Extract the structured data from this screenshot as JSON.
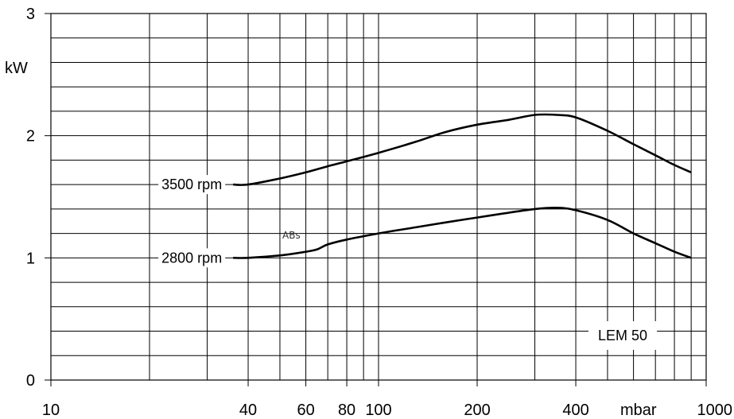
{
  "chart_data": {
    "type": "line",
    "title": "",
    "xlabel": "",
    "ylabel": "",
    "x_scale": "log",
    "xlim": [
      10,
      1000
    ],
    "ylim": [
      0,
      3
    ],
    "grid": true,
    "x_tick_labels": [
      {
        "value": 10,
        "label": "10"
      },
      {
        "value": 40,
        "label": "40"
      },
      {
        "value": 60,
        "label": "60"
      },
      {
        "value": 80,
        "label": "80"
      },
      {
        "value": 100,
        "label": "100"
      },
      {
        "value": 200,
        "label": "200"
      },
      {
        "value": 400,
        "label": "400"
      },
      {
        "value": 1000,
        "label": "1000"
      }
    ],
    "x_unit_label": "mbar",
    "y_tick_labels": [
      {
        "value": 0,
        "label": "0"
      },
      {
        "value": 1,
        "label": "1"
      },
      {
        "value": 2,
        "label": "2"
      },
      {
        "value": 3,
        "label": "3"
      }
    ],
    "y_unit_label": "kW",
    "x_grid_values": [
      20,
      30,
      40,
      50,
      60,
      70,
      80,
      90,
      100,
      200,
      300,
      400,
      500,
      600,
      700,
      800,
      900
    ],
    "y_grid_step": 0.2,
    "series": [
      {
        "name": "3500 rpm",
        "x": [
          36,
          40,
          50,
          60,
          70,
          80,
          100,
          130,
          160,
          200,
          250,
          300,
          350,
          400,
          500,
          600,
          700,
          800,
          900
        ],
        "y": [
          1.6,
          1.6,
          1.65,
          1.7,
          1.75,
          1.79,
          1.86,
          1.95,
          2.03,
          2.09,
          2.13,
          2.17,
          2.17,
          2.15,
          2.04,
          1.93,
          1.84,
          1.76,
          1.7
        ]
      },
      {
        "name": "2800 rpm",
        "x": [
          36,
          40,
          50,
          60,
          65,
          70,
          80,
          100,
          130,
          160,
          200,
          250,
          300,
          350,
          400,
          500,
          600,
          700,
          800,
          900
        ],
        "y": [
          1.0,
          1.0,
          1.02,
          1.05,
          1.07,
          1.11,
          1.15,
          1.2,
          1.25,
          1.29,
          1.33,
          1.37,
          1.4,
          1.41,
          1.39,
          1.31,
          1.2,
          1.12,
          1.05,
          1.0
        ]
      }
    ],
    "annotations": [
      {
        "text": "3500 rpm",
        "series": "3500 rpm"
      },
      {
        "text": "2800 rpm",
        "series": "2800 rpm"
      },
      {
        "text": "ABs"
      },
      {
        "text": "LEM 50"
      }
    ]
  }
}
